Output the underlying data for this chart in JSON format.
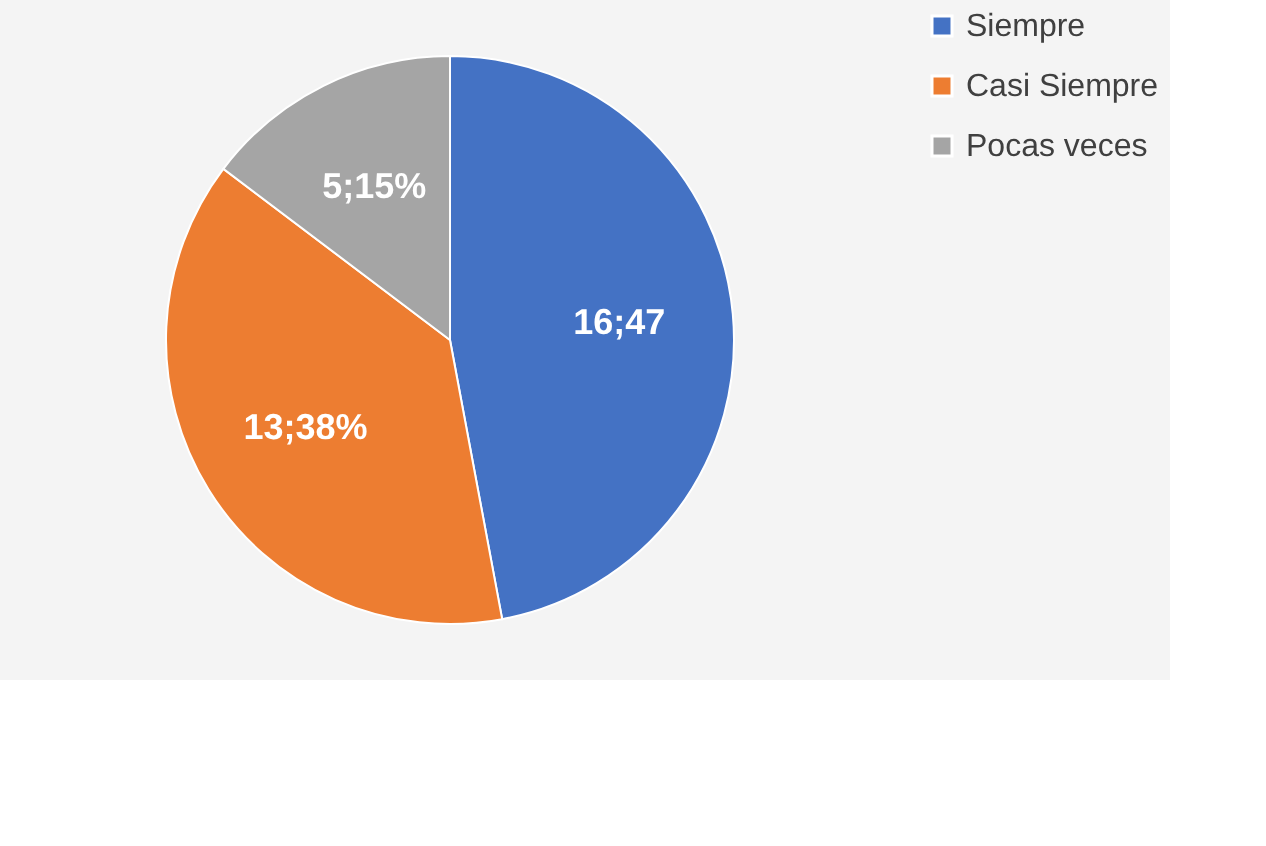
{
  "chart_data": {
    "type": "pie",
    "categories": [
      "Siempre",
      "Casi Siempre",
      "Pocas veces"
    ],
    "values": [
      16,
      13,
      5
    ],
    "colors": [
      "#4472c4",
      "#ed7d31",
      "#a5a5a5"
    ],
    "value_labels": [
      "16;47",
      "13;38%",
      "5;15%"
    ],
    "legend": "right"
  }
}
